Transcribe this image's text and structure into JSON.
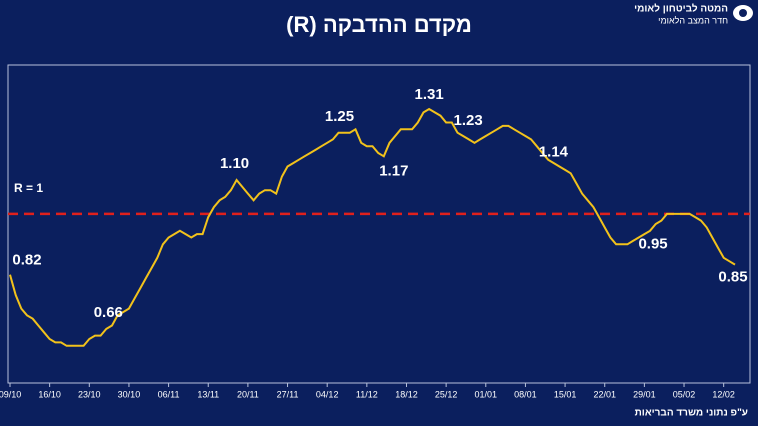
{
  "header": {
    "logo_line1": "המטה לביטחון לאומי",
    "logo_line2": "חדר המצב הלאומי"
  },
  "chart_data": {
    "type": "line",
    "title": "מקדם ההדבקה (R)",
    "color": "#f2c21b",
    "categories": [
      "09/10",
      null,
      null,
      null,
      null,
      null,
      null,
      "16/10",
      null,
      null,
      null,
      null,
      null,
      null,
      "23/10",
      null,
      null,
      null,
      null,
      null,
      null,
      "30/10",
      null,
      null,
      null,
      null,
      null,
      null,
      "06/11",
      null,
      null,
      null,
      null,
      null,
      null,
      "13/11",
      null,
      null,
      null,
      null,
      null,
      null,
      "20/11",
      null,
      null,
      null,
      null,
      null,
      null,
      "27/11",
      null,
      null,
      null,
      null,
      null,
      null,
      "04/12",
      null,
      null,
      null,
      null,
      null,
      null,
      "11/12",
      null,
      null,
      null,
      null,
      null,
      null,
      "18/12",
      null,
      null,
      null,
      null,
      null,
      null,
      "25/12",
      null,
      null,
      null,
      null,
      null,
      null,
      "01/01",
      null,
      null,
      null,
      null,
      null,
      null,
      "08/01",
      null,
      null,
      null,
      null,
      null,
      null,
      "15/01",
      null,
      null,
      null,
      null,
      null,
      null,
      "22/01",
      null,
      null,
      null,
      null,
      null,
      null,
      "29/01",
      null,
      null,
      null,
      null,
      null,
      null,
      "05/02",
      null,
      null,
      null,
      null,
      null,
      null,
      "12/02",
      null,
      null
    ],
    "values": [
      0.82,
      0.76,
      0.72,
      0.7,
      0.69,
      0.67,
      0.65,
      0.63,
      0.62,
      0.62,
      0.61,
      0.61,
      0.61,
      0.61,
      0.63,
      0.64,
      0.64,
      0.66,
      0.67,
      0.7,
      0.71,
      0.72,
      0.75,
      0.78,
      0.81,
      0.84,
      0.87,
      0.91,
      0.93,
      0.94,
      0.95,
      0.94,
      0.93,
      0.94,
      0.94,
      0.99,
      1.02,
      1.04,
      1.05,
      1.07,
      1.1,
      1.08,
      1.06,
      1.04,
      1.06,
      1.07,
      1.07,
      1.06,
      1.11,
      1.14,
      1.15,
      1.16,
      1.17,
      1.18,
      1.19,
      1.2,
      1.21,
      1.22,
      1.24,
      1.24,
      1.24,
      1.25,
      1.21,
      1.2,
      1.2,
      1.18,
      1.17,
      1.21,
      1.23,
      1.25,
      1.25,
      1.25,
      1.27,
      1.3,
      1.31,
      1.3,
      1.29,
      1.27,
      1.27,
      1.24,
      1.23,
      1.22,
      1.21,
      1.22,
      1.23,
      1.24,
      1.25,
      1.26,
      1.26,
      1.25,
      1.24,
      1.23,
      1.22,
      1.2,
      1.18,
      1.16,
      1.15,
      1.14,
      1.13,
      1.12,
      1.09,
      1.06,
      1.04,
      1.02,
      0.99,
      0.96,
      0.93,
      0.91,
      0.91,
      0.91,
      0.92,
      0.93,
      0.94,
      0.95,
      0.97,
      0.98,
      1.0,
      1.0,
      1.0,
      1.0,
      1.0,
      0.99,
      0.98,
      0.96,
      0.93,
      0.9,
      0.87,
      0.86,
      0.85
    ],
    "value_labels": [
      "0.82",
      null,
      null,
      null,
      null,
      null,
      null,
      null,
      null,
      null,
      null,
      null,
      null,
      null,
      null,
      null,
      null,
      "0.66",
      null,
      null,
      null,
      null,
      null,
      null,
      null,
      null,
      null,
      null,
      null,
      null,
      null,
      null,
      null,
      null,
      null,
      null,
      null,
      null,
      null,
      null,
      "1.10",
      null,
      null,
      null,
      null,
      null,
      null,
      null,
      null,
      null,
      null,
      null,
      null,
      null,
      null,
      null,
      null,
      null,
      null,
      null,
      null,
      "1.25",
      null,
      null,
      null,
      null,
      "1.17",
      null,
      null,
      null,
      null,
      null,
      null,
      null,
      "1.31",
      null,
      null,
      null,
      null,
      null,
      "1.23",
      null,
      null,
      null,
      null,
      null,
      null,
      null,
      null,
      null,
      null,
      null,
      null,
      null,
      null,
      null,
      null,
      "1.14",
      null,
      null,
      null,
      null,
      null,
      null,
      null,
      null,
      null,
      null,
      null,
      null,
      null,
      null,
      null,
      "0.95",
      null,
      null,
      null,
      null,
      null,
      null,
      null,
      null,
      null,
      null,
      null,
      null,
      null,
      null,
      "0.85"
    ],
    "ylim": [
      0.5,
      1.44
    ],
    "reference": {
      "value": 1,
      "label": "R = 1",
      "color": "#e0201c"
    }
  },
  "footer": {
    "source": "ע\"פ נתוני משרד הבריאות"
  }
}
